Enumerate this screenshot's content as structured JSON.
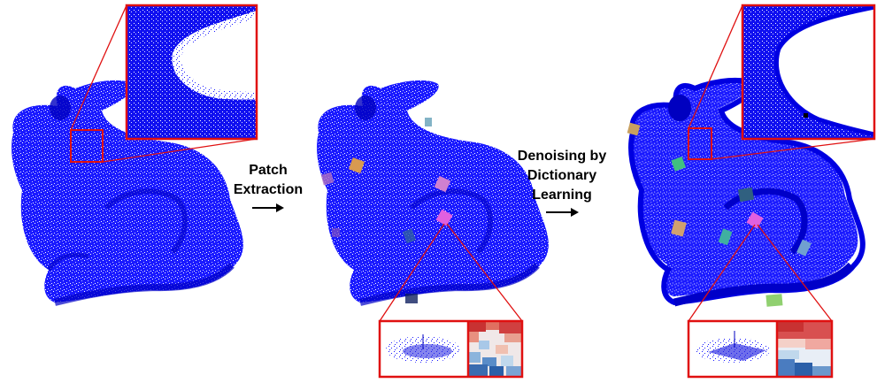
{
  "labels": {
    "patch_extraction": [
      "Patch",
      "Extraction"
    ],
    "denoising": [
      "Denoising by",
      "Dictionary",
      "Learning"
    ]
  },
  "colors": {
    "cloud": "#1a1aff",
    "cloud_dark": "#0000c8",
    "frame": "#e01010",
    "arrow": "#000000",
    "heat_red": "#c83232",
    "heat_blue": "#2b5fa8"
  }
}
